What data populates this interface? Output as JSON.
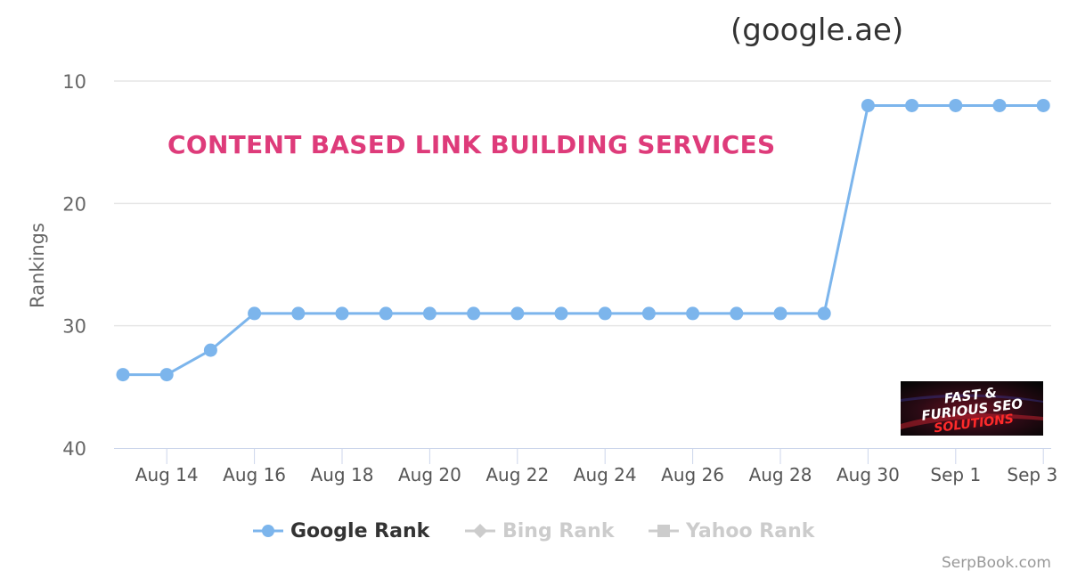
{
  "chart_data": {
    "type": "line",
    "title": "",
    "subtitle": "(google.ae)",
    "annotation": "CONTENT BASED LINK BUILDING SERVICES",
    "xlabel": "",
    "ylabel": "Rankings",
    "y_reversed": true,
    "ylim": [
      8,
      40
    ],
    "yticks": [
      10,
      20,
      30,
      40
    ],
    "grid": true,
    "x_tick_labels": [
      "Aug 14",
      "Aug 16",
      "Aug 18",
      "Aug 20",
      "Aug 22",
      "Aug 24",
      "Aug 26",
      "Aug 28",
      "Aug 30",
      "Sep 1",
      "Sep 3"
    ],
    "x": [
      "Aug 13",
      "Aug 14",
      "Aug 15",
      "Aug 16",
      "Aug 17",
      "Aug 18",
      "Aug 19",
      "Aug 20",
      "Aug 21",
      "Aug 22",
      "Aug 23",
      "Aug 24",
      "Aug 25",
      "Aug 26",
      "Aug 27",
      "Aug 28",
      "Aug 29",
      "Aug 30",
      "Aug 31",
      "Sep 1",
      "Sep 2",
      "Sep 3"
    ],
    "series": [
      {
        "name": "Google Rank",
        "color": "#7cb5ec",
        "values": [
          34,
          34,
          32,
          29,
          29,
          29,
          29,
          29,
          29,
          29,
          29,
          29,
          29,
          29,
          29,
          29,
          29,
          12,
          12,
          12,
          12,
          12
        ]
      }
    ],
    "legend": {
      "placement": "bottom",
      "items": [
        {
          "label": "Google Rank",
          "symbol": "circle",
          "color": "#7cb5ec",
          "active": true
        },
        {
          "label": "Bing Rank",
          "symbol": "diamond",
          "color": "#cccccc",
          "active": false
        },
        {
          "label": "Yahoo Rank",
          "symbol": "square",
          "color": "#cccccc",
          "active": false
        }
      ]
    }
  },
  "logo": {
    "lines": [
      "FAST &",
      "FURIOUS SEO",
      "SOLUTIONS"
    ]
  },
  "credit": "SerpBook.com"
}
